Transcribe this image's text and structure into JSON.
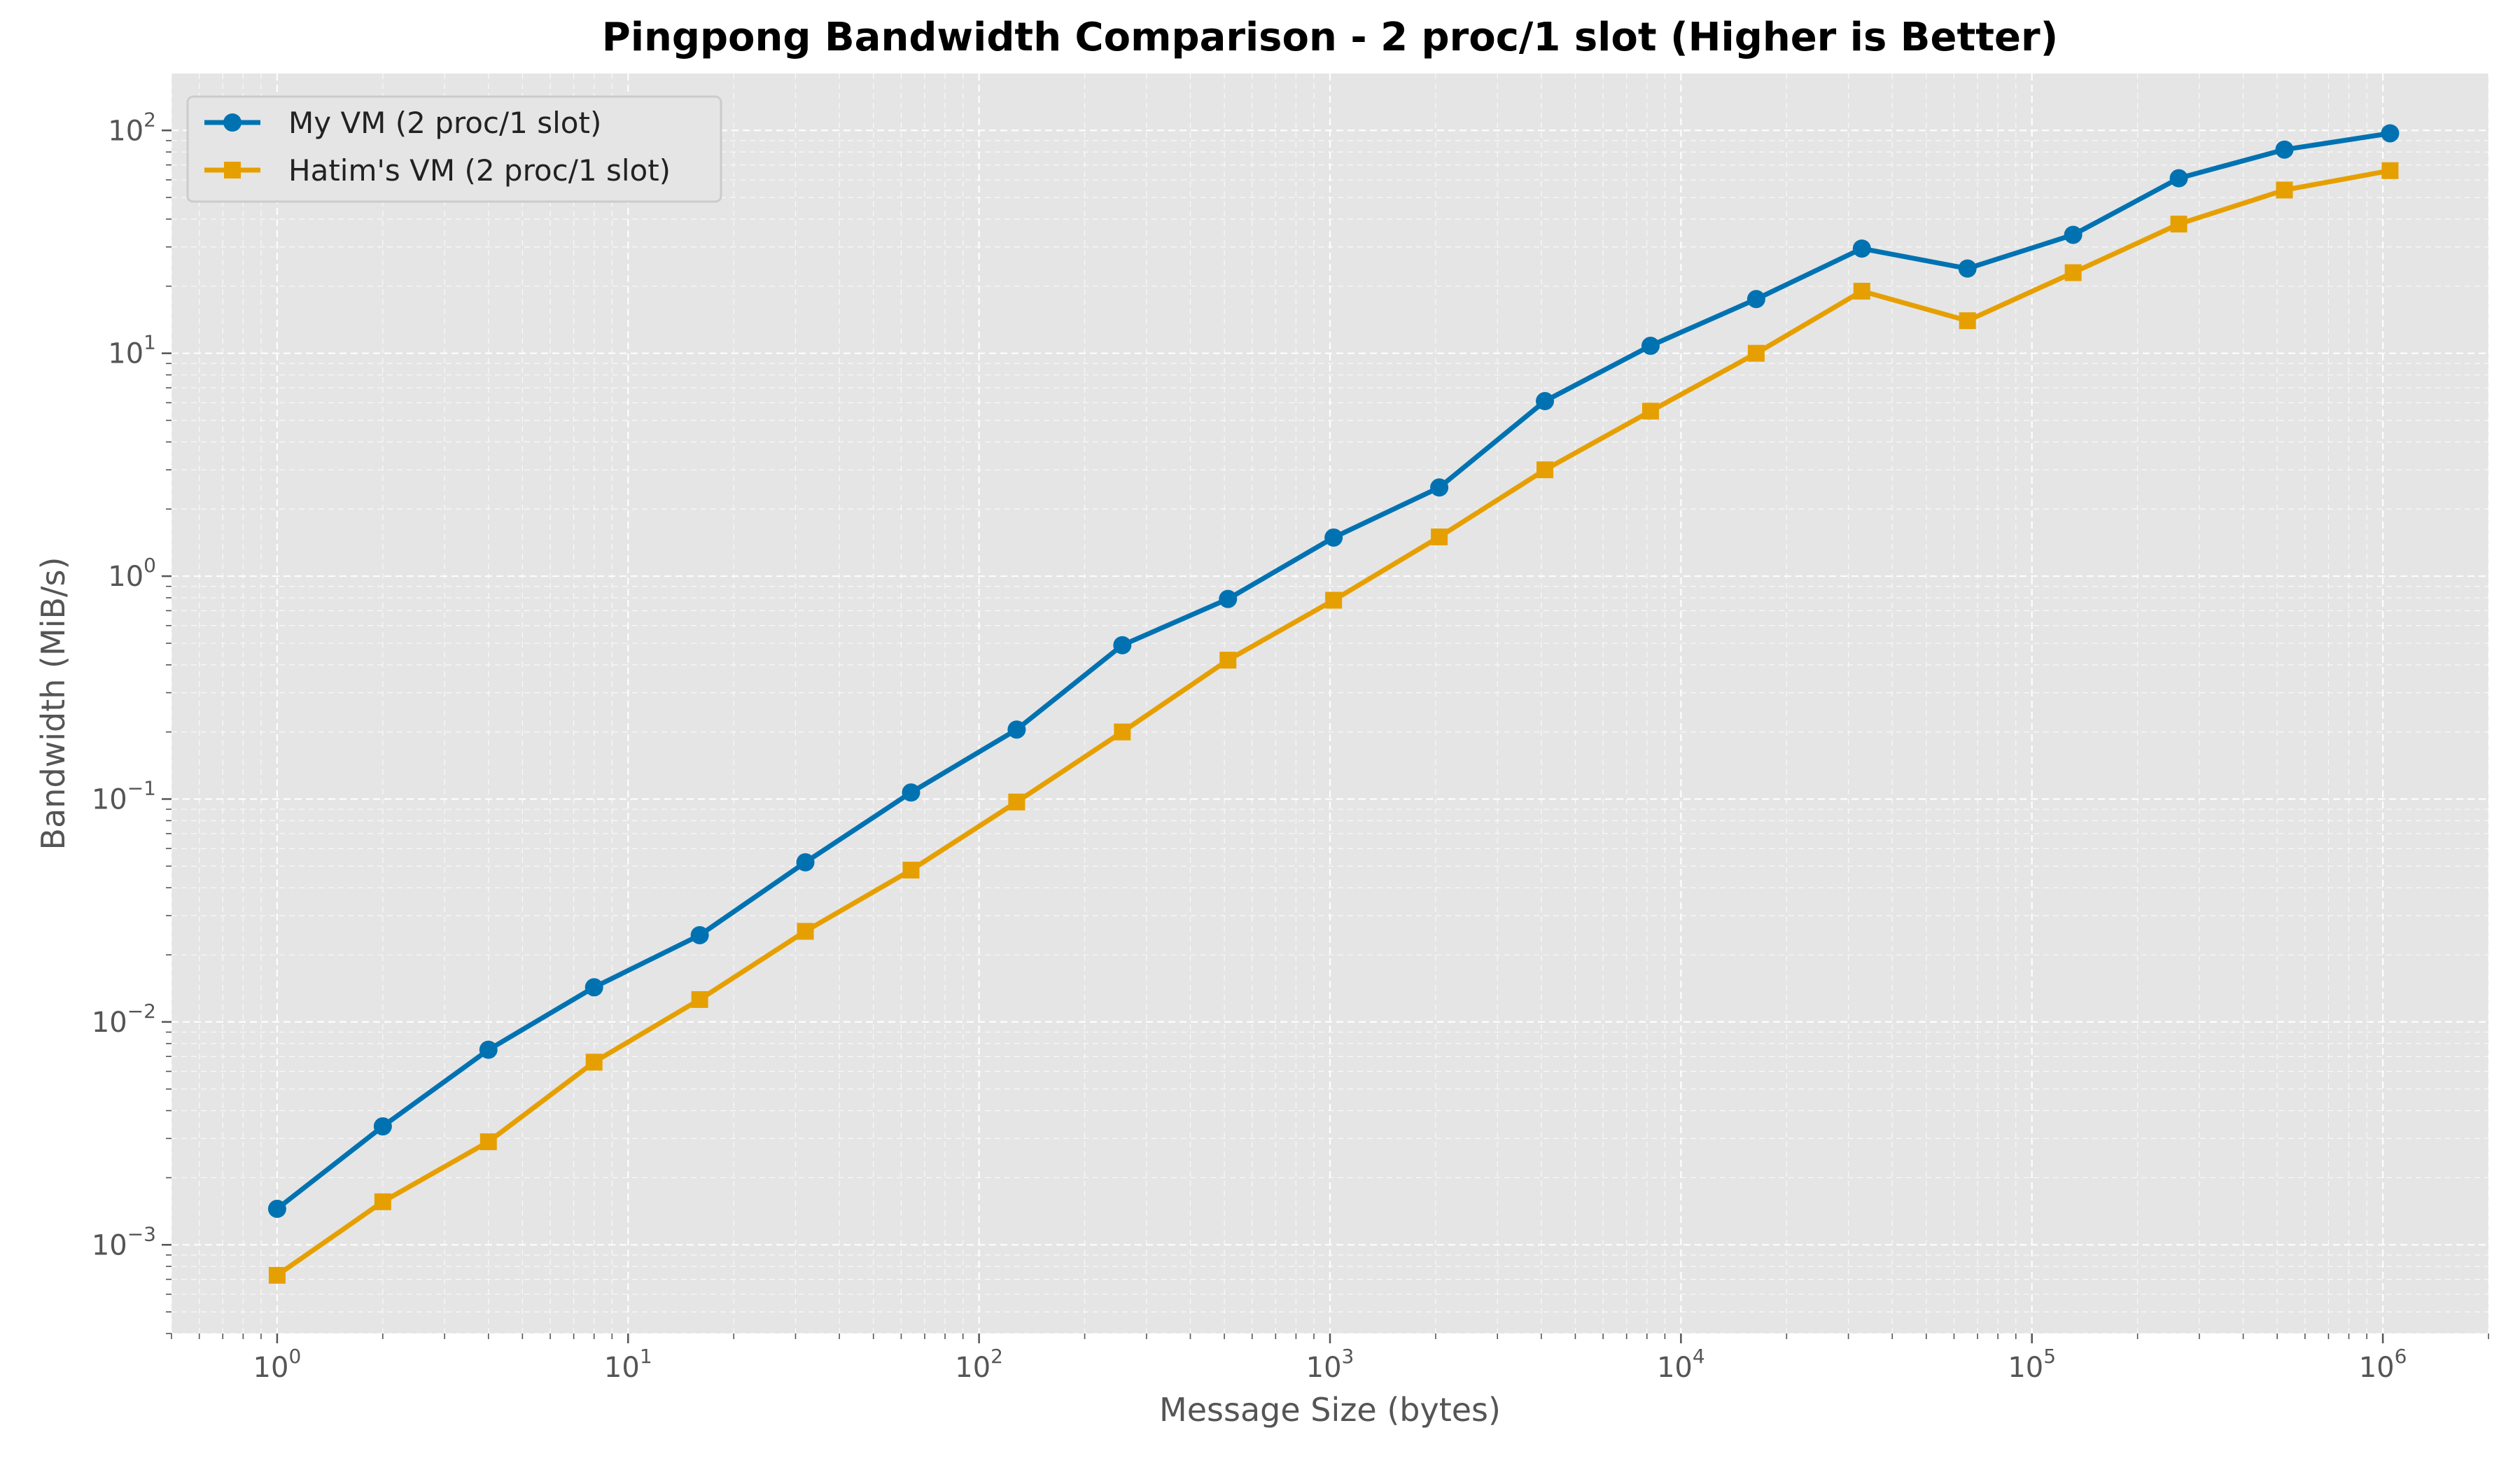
{
  "chart_data": {
    "type": "line",
    "title": "Pingpong Bandwidth Comparison - 2 proc/1 slot (Higher is Better)",
    "xlabel": "Message Size (bytes)",
    "ylabel": "Bandwidth (MiB/s)",
    "xscale": "log",
    "yscale": "log",
    "xlim": [
      0.5,
      2000000
    ],
    "ylim": [
      0.0004,
      180
    ],
    "grid": true,
    "legend": "top-left",
    "x_tick_labels": [
      {
        "base": "10",
        "exp": "0"
      },
      {
        "base": "10",
        "exp": "1"
      },
      {
        "base": "10",
        "exp": "2"
      },
      {
        "base": "10",
        "exp": "3"
      },
      {
        "base": "10",
        "exp": "4"
      },
      {
        "base": "10",
        "exp": "5"
      },
      {
        "base": "10",
        "exp": "6"
      }
    ],
    "y_tick_labels": [
      {
        "base": "10",
        "exp": "−3"
      },
      {
        "base": "10",
        "exp": "−2"
      },
      {
        "base": "10",
        "exp": "−1"
      },
      {
        "base": "10",
        "exp": "0"
      },
      {
        "base": "10",
        "exp": "1"
      },
      {
        "base": "10",
        "exp": "2"
      }
    ],
    "x": [
      1,
      2,
      4,
      8,
      16,
      32,
      64,
      128,
      256,
      512,
      1024,
      2048,
      4096,
      8192,
      16384,
      32768,
      65536,
      131072,
      262144,
      524288,
      1048576
    ],
    "series": [
      {
        "name": "My VM (2 proc/1 slot)",
        "color": "#0072B2",
        "marker": "circle",
        "values": [
          0.00145,
          0.0034,
          0.0075,
          0.0143,
          0.0245,
          0.052,
          0.107,
          0.205,
          0.49,
          0.79,
          1.49,
          2.5,
          6.1,
          10.8,
          17.5,
          29.5,
          24.0,
          34.0,
          61.0,
          82.0,
          97.0
        ]
      },
      {
        "name": "Hatim's VM (2 proc/1 slot)",
        "color": "#E69F00",
        "marker": "square",
        "values": [
          0.00073,
          0.00156,
          0.0029,
          0.0066,
          0.0126,
          0.0255,
          0.048,
          0.097,
          0.2,
          0.42,
          0.78,
          1.5,
          3.0,
          5.5,
          10.0,
          19.0,
          14.0,
          23.0,
          38.0,
          54.0,
          66.0
        ]
      }
    ]
  }
}
